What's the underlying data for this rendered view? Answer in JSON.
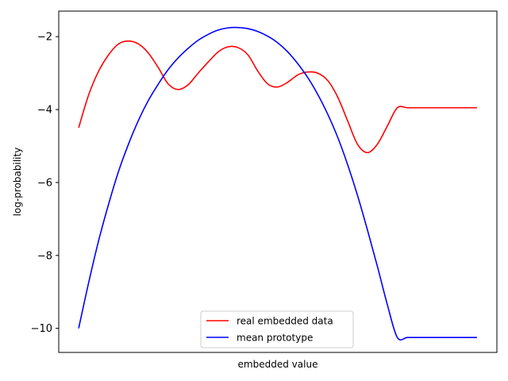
{
  "chart_data": {
    "type": "line",
    "xlabel": "embedded value",
    "ylabel": "log-probability",
    "xlim": [
      -0.05,
      1.05
    ],
    "ylim": [
      -10.66,
      -1.3
    ],
    "yticks": [
      -2,
      -4,
      -6,
      -8,
      -10
    ],
    "ytick_labels": [
      "−2",
      "−4",
      "−6",
      "−8",
      "−10"
    ],
    "grid": false,
    "legend_position": "bottom-center",
    "series": [
      {
        "name": "real embedded data",
        "color": "#ff0000",
        "x": [
          0.0,
          0.025,
          0.05,
          0.075,
          0.1,
          0.125,
          0.15,
          0.175,
          0.2,
          0.225,
          0.25,
          0.275,
          0.3,
          0.325,
          0.35,
          0.375,
          0.4,
          0.425,
          0.45,
          0.475,
          0.5,
          0.525,
          0.55,
          0.575,
          0.6,
          0.625,
          0.65,
          0.675,
          0.7,
          0.725,
          0.75,
          0.775,
          0.8,
          0.825,
          0.85,
          0.875,
          0.9,
          0.925,
          0.95,
          0.975,
          1.0
        ],
        "y": [
          -4.5,
          -3.6,
          -2.95,
          -2.5,
          -2.2,
          -2.12,
          -2.2,
          -2.45,
          -2.85,
          -3.3,
          -3.45,
          -3.32,
          -3.0,
          -2.7,
          -2.42,
          -2.28,
          -2.3,
          -2.5,
          -2.95,
          -3.3,
          -3.38,
          -3.25,
          -3.05,
          -2.97,
          -3.0,
          -3.2,
          -3.65,
          -4.3,
          -4.95,
          -5.18,
          -4.95,
          -4.45,
          -3.95,
          -3.95,
          -3.95,
          -3.95,
          -3.95,
          -3.95,
          -3.95,
          -3.95,
          -3.95
        ]
      },
      {
        "name": "mean prototype",
        "color": "#0000ff",
        "x": [
          0.0,
          0.025,
          0.05,
          0.075,
          0.1,
          0.125,
          0.15,
          0.175,
          0.2,
          0.225,
          0.25,
          0.275,
          0.3,
          0.325,
          0.35,
          0.375,
          0.4,
          0.425,
          0.45,
          0.475,
          0.5,
          0.525,
          0.55,
          0.575,
          0.6,
          0.625,
          0.65,
          0.675,
          0.7,
          0.725,
          0.75,
          0.775,
          0.8,
          0.825,
          0.85,
          0.875,
          0.9,
          0.925,
          0.95,
          0.975,
          1.0
        ],
        "y": [
          -10.0,
          -8.75,
          -7.6,
          -6.6,
          -5.7,
          -4.95,
          -4.3,
          -3.75,
          -3.3,
          -2.9,
          -2.58,
          -2.32,
          -2.1,
          -1.94,
          -1.82,
          -1.76,
          -1.75,
          -1.78,
          -1.86,
          -1.99,
          -2.17,
          -2.42,
          -2.74,
          -3.12,
          -3.58,
          -4.12,
          -4.75,
          -5.5,
          -6.35,
          -7.3,
          -8.3,
          -9.35,
          -10.25,
          -10.25,
          -10.25,
          -10.25,
          -10.25,
          -10.25,
          -10.25,
          -10.25,
          -10.25
        ]
      }
    ]
  }
}
